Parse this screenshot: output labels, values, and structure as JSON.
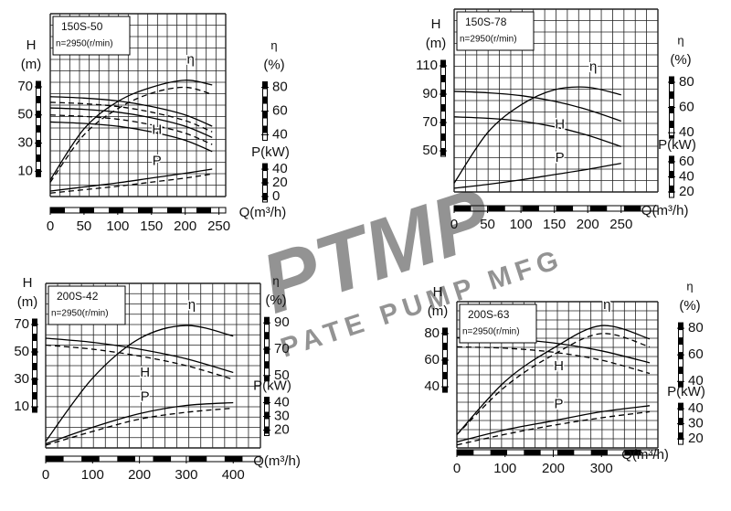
{
  "watermark": {
    "logo": "PTMP",
    "text": "PATE PUMP MFG"
  },
  "chart_data": [
    {
      "type": "line",
      "title": "150S-50",
      "subtitle": "n=2950(r/min)",
      "xlabel": "Q(m³/h)",
      "x": [
        0,
        50,
        100,
        150,
        200,
        240
      ],
      "xlim": [
        0,
        260
      ],
      "xticks": [
        0,
        50,
        100,
        150,
        200,
        250
      ],
      "ylabel": "H",
      "yunit": "(m)",
      "ylim": [
        -8,
        122
      ],
      "yticks": [
        10,
        30,
        50,
        70
      ],
      "y2label": "η",
      "y2unit": "(%)",
      "y2lim": [
        -12,
        142
      ],
      "y2ticks": [
        40,
        60,
        80
      ],
      "y3label": "P(kW)",
      "y3lim": [
        0,
        267
      ],
      "y3ticks": [
        0,
        20,
        40
      ],
      "curves": [
        {
          "name": "H",
          "axis": "y",
          "lines": [
            {
              "dashed": false,
              "values": [
                63,
                62,
                60,
                56,
                50,
                42
              ]
            },
            {
              "dashed": true,
              "values": [
                59,
                58,
                56,
                52,
                46,
                38
              ]
            },
            {
              "dashed": false,
              "values": [
                55,
                54,
                52,
                48,
                42,
                34
              ]
            },
            {
              "dashed": true,
              "values": [
                50,
                49,
                47,
                43,
                37,
                29
              ]
            },
            {
              "dashed": false,
              "values": [
                45,
                44,
                42,
                38,
                32,
                24
              ]
            }
          ]
        },
        {
          "name": "η",
          "axis": "y2",
          "lines": [
            {
              "dashed": false,
              "values": [
                2,
                45,
                68,
                80,
                86,
                82
              ]
            },
            {
              "dashed": true,
              "values": [
                0,
                40,
                62,
                75,
                80,
                74
              ]
            }
          ]
        },
        {
          "name": "P",
          "axis": "y3",
          "lines": [
            {
              "dashed": false,
              "values": [
                8,
                14,
                20,
                27,
                34,
                40
              ]
            },
            {
              "dashed": true,
              "values": [
                5,
                10,
                15,
                21,
                27,
                33
              ]
            }
          ]
        }
      ]
    },
    {
      "type": "line",
      "title": "150S-78",
      "subtitle": "n=2950(r/min)",
      "xlabel": "Q(m³/h)",
      "x": [
        0,
        50,
        100,
        150,
        200,
        250
      ],
      "xlim": [
        0,
        305
      ],
      "xticks": [
        0,
        50,
        100,
        150,
        200,
        250
      ],
      "ylabel": "H",
      "yunit": "(m)",
      "ylim": [
        21,
        150
      ],
      "yticks": [
        50,
        70,
        90,
        110
      ],
      "y2label": "η",
      "y2unit": "(%)",
      "y2lim": [
        -7,
        138
      ],
      "y2ticks": [
        40,
        60,
        80
      ],
      "y3label": "P(kW)",
      "y3lim": [
        20,
        262
      ],
      "y3ticks": [
        20,
        40,
        60
      ],
      "curves": [
        {
          "name": "H",
          "axis": "y",
          "lines": [
            {
              "dashed": false,
              "values": [
                92,
                91,
                89,
                85,
                79,
                71
              ]
            },
            {
              "dashed": false,
              "values": [
                74,
                73,
                71,
                67,
                61,
                53
              ]
            }
          ]
        },
        {
          "name": "η",
          "axis": "y2",
          "lines": [
            {
              "dashed": false,
              "values": [
                0,
                40,
                62,
                74,
                76,
                70
              ]
            }
          ]
        },
        {
          "name": "P",
          "axis": "y3",
          "lines": [
            {
              "dashed": false,
              "values": [
                25,
                30,
                36,
                43,
                50,
                58
              ]
            }
          ]
        }
      ]
    },
    {
      "type": "line",
      "title": "200S-42",
      "subtitle": "n=2950(r/min)",
      "xlabel": "Q(m³/h)",
      "x": [
        0,
        100,
        200,
        300,
        400
      ],
      "xlim": [
        0,
        458
      ],
      "xticks": [
        0,
        100,
        200,
        300,
        400
      ],
      "ylabel": "H",
      "yunit": "(m)",
      "ylim": [
        -20,
        100
      ],
      "yticks": [
        10,
        30,
        50,
        70
      ],
      "y2label": "η",
      "y2unit": "(%)",
      "y2lim": [
        -5,
        120
      ],
      "y2ticks": [
        50,
        70,
        90
      ],
      "y3label": "P(kW)",
      "y3lim": [
        7,
        127
      ],
      "y3ticks": [
        20,
        30,
        40
      ],
      "curves": [
        {
          "name": "H",
          "axis": "y",
          "lines": [
            {
              "dashed": false,
              "values": [
                60,
                57,
                52,
                45,
                35
              ]
            },
            {
              "dashed": true,
              "values": [
                55,
                52,
                47,
                40,
                30
              ]
            }
          ]
        },
        {
          "name": "η",
          "axis": "y2",
          "lines": [
            {
              "dashed": false,
              "values": [
                0,
                48,
                78,
                88,
                80
              ]
            }
          ]
        },
        {
          "name": "P",
          "axis": "y3",
          "lines": [
            {
              "dashed": false,
              "values": [
                10,
                22,
                32,
                38,
                40
              ]
            },
            {
              "dashed": true,
              "values": [
                9,
                19,
                28,
                33,
                36
              ]
            }
          ]
        }
      ]
    },
    {
      "type": "line",
      "title": "200S-63",
      "subtitle": "n=2950(r/min)",
      "xlabel": "Q(m³/h)",
      "x": [
        0,
        100,
        200,
        300,
        400
      ],
      "xlim": [
        0,
        417
      ],
      "xticks": [
        0,
        100,
        200,
        300
      ],
      "ylabel": "H",
      "yunit": "(m)",
      "ylim": [
        -6,
        104
      ],
      "yticks": [
        40,
        60,
        80
      ],
      "y2label": "η",
      "y2unit": "(%)",
      "y2lim": [
        -10,
        100
      ],
      "y2ticks": [
        40,
        60,
        80
      ],
      "y3label": "P(kW)",
      "y3lim": [
        14,
        111
      ],
      "y3ticks": [
        20,
        30,
        40
      ],
      "curves": [
        {
          "name": "H",
          "axis": "y",
          "lines": [
            {
              "dashed": false,
              "values": [
                77,
                76,
                73,
                67,
                58
              ]
            },
            {
              "dashed": true,
              "values": [
                70,
                69,
                66,
                60,
                50
              ]
            }
          ]
        },
        {
          "name": "η",
          "axis": "y2",
          "lines": [
            {
              "dashed": false,
              "values": [
                0,
                40,
                65,
                82,
                72
              ]
            },
            {
              "dashed": true,
              "values": [
                0,
                36,
                60,
                76,
                66
              ]
            }
          ]
        },
        {
          "name": "P",
          "axis": "y3",
          "lines": [
            {
              "dashed": false,
              "values": [
                18,
                26,
                32,
                38,
                42
              ]
            },
            {
              "dashed": true,
              "values": [
                16,
                23,
                29,
                34,
                38
              ]
            }
          ]
        }
      ]
    }
  ]
}
